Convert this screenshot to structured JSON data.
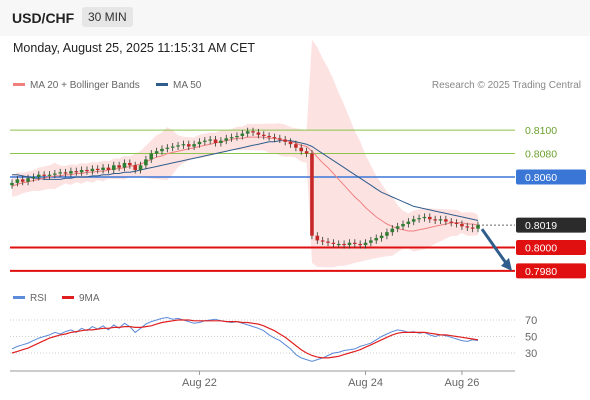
{
  "header": {
    "pair": "USD/CHF",
    "timeframe": "30 MIN",
    "datetime": "Monday, August 25, 2025 11:15:31 AM CET"
  },
  "legend": {
    "bollinger": {
      "label": "MA 20 + Bollinger Bands",
      "color": "#f08080"
    },
    "ma50": {
      "label": "MA 50",
      "color": "#2f5d8c"
    },
    "credit": "Research © 2025 Trading Central"
  },
  "rsi_legend": {
    "rsi": {
      "label": "RSI",
      "color": "#5b8bd9"
    },
    "ma9": {
      "label": "9MA",
      "color": "#e02020"
    }
  },
  "levels": [
    {
      "label": "0.8100",
      "value": 0.81,
      "kind": "resistance",
      "color": "#8cc34a"
    },
    {
      "label": "0.8080",
      "value": 0.808,
      "kind": "resistance",
      "color": "#8cc34a"
    },
    {
      "label": "0.8060",
      "value": 0.806,
      "kind": "pivot",
      "color": "#3a76d6"
    },
    {
      "label": "0.8019",
      "value": 0.8019,
      "kind": "last",
      "color": "#2b2b2b"
    },
    {
      "label": "0.8000",
      "value": 0.8,
      "kind": "support",
      "color": "#e01010"
    },
    {
      "label": "0.7980",
      "value": 0.798,
      "kind": "support",
      "color": "#e01010"
    }
  ],
  "rsi_levels": [
    "70",
    "50",
    "30"
  ],
  "x_ticks": [
    "Aug 22",
    "Aug 24",
    "Aug 26"
  ],
  "chart_data": {
    "type": "line",
    "ylim": [
      0.7968,
      0.8112
    ],
    "series": [
      {
        "name": "Price",
        "values": [
          0.8055,
          0.8058,
          0.8056,
          0.8059,
          0.806,
          0.8062,
          0.8061,
          0.8062,
          0.8063,
          0.8064,
          0.8063,
          0.8065,
          0.8064,
          0.8066,
          0.8065,
          0.8067,
          0.8066,
          0.8068,
          0.8066,
          0.807,
          0.8068,
          0.8072,
          0.807,
          0.8066,
          0.807,
          0.8075,
          0.808,
          0.8082,
          0.8084,
          0.8085,
          0.8086,
          0.8087,
          0.8088,
          0.8086,
          0.8088,
          0.809,
          0.8091,
          0.8092,
          0.8089,
          0.8091,
          0.8093,
          0.8094,
          0.8095,
          0.8097,
          0.8099,
          0.8098,
          0.8096,
          0.8095,
          0.8094,
          0.8093,
          0.8092,
          0.809,
          0.8088,
          0.8085,
          0.8082,
          0.808,
          0.801,
          0.8006,
          0.8005,
          0.8004,
          0.8003,
          0.8003,
          0.8002,
          0.8004,
          0.8003,
          0.8002,
          0.8004,
          0.8006,
          0.8008,
          0.801,
          0.8013,
          0.8016,
          0.8018,
          0.802,
          0.8022,
          0.8024,
          0.8025,
          0.8026,
          0.8024,
          0.8023,
          0.8024,
          0.8022,
          0.8021,
          0.802,
          0.8018,
          0.8017,
          0.8016,
          0.8019
        ]
      },
      {
        "name": "MA 20",
        "values": [
          0.8052,
          0.8054,
          0.8055,
          0.8056,
          0.8057,
          0.8058,
          0.8059,
          0.806,
          0.8061,
          0.8061,
          0.8062,
          0.8062,
          0.8063,
          0.8063,
          0.8064,
          0.8064,
          0.8065,
          0.8065,
          0.8066,
          0.8067,
          0.8067,
          0.8068,
          0.8069,
          0.807,
          0.8071,
          0.8073,
          0.8075,
          0.8077,
          0.8078,
          0.808,
          0.8081,
          0.8082,
          0.8083,
          0.8084,
          0.8085,
          0.8086,
          0.8087,
          0.8088,
          0.8089,
          0.809,
          0.8091,
          0.8092,
          0.8093,
          0.8093,
          0.8094,
          0.8094,
          0.8094,
          0.8094,
          0.8093,
          0.8093,
          0.8092,
          0.8091,
          0.809,
          0.8089,
          0.8087,
          0.8086,
          0.8082,
          0.8077,
          0.8072,
          0.8068,
          0.8063,
          0.8058,
          0.8053,
          0.8048,
          0.8043,
          0.8039,
          0.8034,
          0.803,
          0.8026,
          0.8023,
          0.802,
          0.8018,
          0.8016,
          0.8015,
          0.8014,
          0.8014,
          0.8015,
          0.8016,
          0.8017,
          0.8018,
          0.8019,
          0.802,
          0.8021,
          0.8021,
          0.8021,
          0.802,
          0.802,
          0.8019
        ]
      },
      {
        "name": "MA 50",
        "values": [
          0.8062,
          0.8062,
          0.8061,
          0.806,
          0.8059,
          0.8059,
          0.8058,
          0.8058,
          0.8058,
          0.8058,
          0.8059,
          0.8059,
          0.806,
          0.806,
          0.806,
          0.8061,
          0.8061,
          0.8062,
          0.8062,
          0.8063,
          0.8063,
          0.8064,
          0.8064,
          0.8065,
          0.8066,
          0.8067,
          0.8068,
          0.8069,
          0.807,
          0.8071,
          0.8072,
          0.8073,
          0.8074,
          0.8075,
          0.8076,
          0.8077,
          0.8078,
          0.8079,
          0.808,
          0.8081,
          0.8082,
          0.8083,
          0.8084,
          0.8085,
          0.8086,
          0.8087,
          0.8088,
          0.8089,
          0.809,
          0.809,
          0.8091,
          0.8091,
          0.8091,
          0.809,
          0.8089,
          0.8088,
          0.8086,
          0.8083,
          0.808,
          0.8077,
          0.8074,
          0.8071,
          0.8068,
          0.8065,
          0.8062,
          0.8059,
          0.8056,
          0.8053,
          0.805,
          0.8047,
          0.8045,
          0.8043,
          0.8041,
          0.8039,
          0.8037,
          0.8035,
          0.8034,
          0.8033,
          0.8032,
          0.8031,
          0.803,
          0.8029,
          0.8028,
          0.8027,
          0.8026,
          0.8025,
          0.8024,
          0.8023
        ]
      },
      {
        "name": "RSI",
        "values": [
          35,
          38,
          40,
          42,
          45,
          48,
          50,
          52,
          55,
          53,
          56,
          58,
          55,
          60,
          57,
          62,
          59,
          63,
          58,
          64,
          60,
          66,
          62,
          55,
          60,
          65,
          68,
          70,
          72,
          73,
          71,
          72,
          70,
          68,
          66,
          67,
          69,
          70,
          71,
          69,
          68,
          67,
          68,
          66,
          64,
          62,
          60,
          57,
          52,
          48,
          45,
          40,
          35,
          28,
          24,
          22,
          20,
          22,
          24,
          27,
          30,
          31,
          33,
          34,
          35,
          38,
          40,
          42,
          46,
          50,
          53,
          56,
          58,
          57,
          55,
          56,
          54,
          55,
          52,
          50,
          52,
          51,
          49,
          47,
          45,
          44,
          46,
          45
        ]
      },
      {
        "name": "9MA",
        "values": [
          30,
          32,
          34,
          36,
          39,
          42,
          45,
          48,
          50,
          52,
          53,
          55,
          56,
          57,
          58,
          58,
          59,
          60,
          60,
          61,
          61,
          62,
          62,
          61,
          61,
          62,
          63,
          65,
          67,
          68,
          69,
          70,
          70,
          70,
          69,
          69,
          69,
          69,
          69,
          69,
          68,
          68,
          68,
          67,
          67,
          66,
          65,
          63,
          60,
          57,
          53,
          49,
          44,
          39,
          34,
          30,
          27,
          25,
          24,
          24,
          25,
          26,
          28,
          30,
          32,
          34,
          37,
          40,
          43,
          46,
          49,
          52,
          54,
          55,
          55,
          55,
          55,
          55,
          54,
          53,
          52,
          52,
          51,
          50,
          49,
          48,
          47,
          46
        ]
      }
    ]
  }
}
